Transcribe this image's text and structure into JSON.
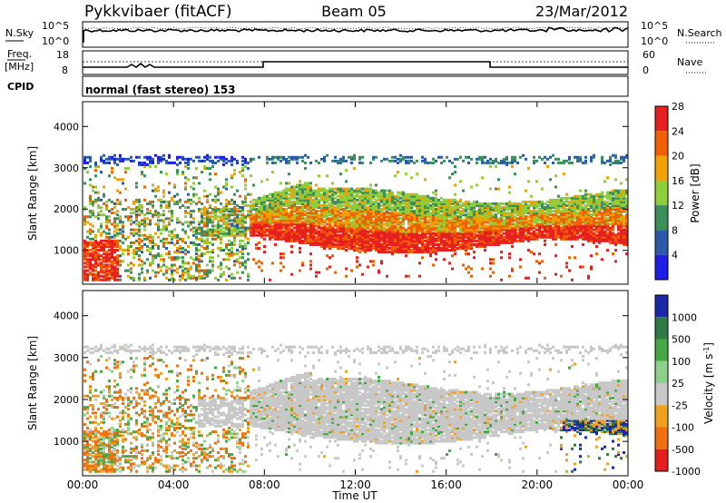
{
  "header": {
    "station": "Pykkvibaer (fitACF)",
    "beam": "Beam 05",
    "date": "23/Mar/2012"
  },
  "panels": {
    "noise": {
      "left_label": "N.Sky",
      "right_label": "N.Search",
      "left_ticks": [
        "10^5",
        "10^0"
      ],
      "right_ticks": [
        "10^5",
        "10^0"
      ]
    },
    "freq": {
      "left_label_line1": "Freq.",
      "left_label_line2": "[MHz]",
      "right_label": "Nave",
      "left_ticks": [
        "18",
        "8"
      ],
      "right_ticks": [
        "60",
        "0"
      ]
    },
    "cpid": {
      "label": "CPID",
      "value": "normal (fast stereo) 153"
    }
  },
  "chart_data": [
    {
      "type": "heatmap",
      "title": "",
      "xlabel": "Time UT",
      "ylabel": "Slant Range [km]",
      "x_ticks": [
        "00:00",
        "04:00",
        "08:00",
        "12:00",
        "16:00",
        "20:00",
        "00:00"
      ],
      "xlim_hours": [
        0,
        24
      ],
      "y_ticks": [
        1000,
        2000,
        3000,
        4000
      ],
      "ylim": [
        180,
        4600
      ],
      "colorbar": {
        "label": "Power [dB]",
        "ticks": [
          4,
          8,
          12,
          16,
          20,
          24,
          28
        ],
        "colors": [
          "#1e1ee6",
          "#2a5aa8",
          "#3a8f5a",
          "#8fce3a",
          "#f0a000",
          "#f06000",
          "#e62020"
        ]
      },
      "description_regions": [
        {
          "hours": [
            0,
            7
          ],
          "range_km": [
            300,
            3200
          ],
          "dominant": "green/orange scattered"
        },
        {
          "hours": [
            7.5,
            24
          ],
          "range_km": [
            1000,
            2800
          ],
          "dominant": "red band with green"
        }
      ]
    },
    {
      "type": "heatmap",
      "title": "",
      "xlabel": "Time UT",
      "ylabel": "Slant Range [km]",
      "x_ticks": [
        "00:00",
        "04:00",
        "08:00",
        "12:00",
        "16:00",
        "20:00",
        "00:00"
      ],
      "xlim_hours": [
        0,
        24
      ],
      "y_ticks": [
        1000,
        2000,
        3000,
        4000
      ],
      "ylim": [
        180,
        4600
      ],
      "colorbar": {
        "label": "Velocity [m s^-1]",
        "ticks": [
          "1000",
          "500",
          "100",
          "25",
          "-25",
          "-100",
          "-500",
          "-1000"
        ],
        "colors": [
          "#1a2aa8",
          "#2d7a45",
          "#44a844",
          "#8cd08c",
          "#c8c8c8",
          "#f0a020",
          "#f07010",
          "#e61e1e"
        ]
      },
      "description_regions": [
        {
          "hours": [
            0,
            7
          ],
          "range_km": [
            300,
            2400
          ],
          "dominant": "orange/green scattered"
        },
        {
          "hours": [
            7.5,
            24
          ],
          "range_km": [
            1200,
            2800
          ],
          "dominant": "grey (low velocity)"
        }
      ]
    }
  ]
}
